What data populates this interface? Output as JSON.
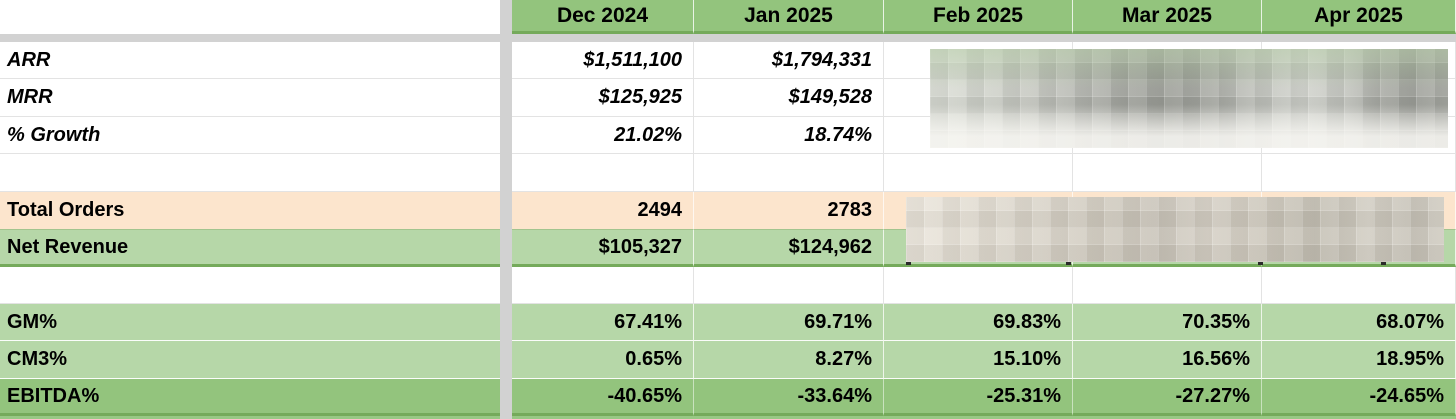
{
  "sheet": {
    "columns": [
      "Dec 2024",
      "Jan 2025",
      "Feb 2025",
      "Mar 2025",
      "Apr 2025"
    ],
    "rows": {
      "arr": {
        "label": "ARR",
        "dec": "$1,511,100",
        "jan": "$1,794,331"
      },
      "mrr": {
        "label": "MRR",
        "dec": "$125,925",
        "jan": "$149,528"
      },
      "growth": {
        "label": "% Growth",
        "dec": "21.02%",
        "jan": "18.74%"
      },
      "total_orders": {
        "label": "Total Orders",
        "dec": "2494",
        "jan": "2783"
      },
      "net_revenue": {
        "label": "Net Revenue",
        "dec": "$105,327",
        "jan": "$124,962"
      },
      "gm": {
        "label": "GM%",
        "values": [
          "67.41%",
          "69.71%",
          "69.83%",
          "70.35%",
          "68.07%"
        ]
      },
      "cm3": {
        "label": "CM3%",
        "values": [
          "0.65%",
          "8.27%",
          "15.10%",
          "16.56%",
          "18.95%"
        ]
      },
      "ebitda": {
        "label": "EBITDA%",
        "values": [
          "-40.65%",
          "-33.64%",
          "-25.31%",
          "-27.27%",
          "-24.65%"
        ]
      }
    },
    "redactions": [
      {
        "name": "arr-mrr-growth-feb-apr",
        "note": "pixelated blur over Feb–Apr values"
      },
      {
        "name": "orders-revenue-feb-apr",
        "note": "pixelated blur over Feb–Apr values"
      }
    ],
    "colors": {
      "header_green": "#93c47d",
      "light_green": "#b6d7a8",
      "dark_green_border": "#75aa5b",
      "peach": "#fce5cd",
      "frozen_divider_gray": "#d2d2d2",
      "gridline_gray": "#e3e3e3",
      "text": "#000000"
    }
  }
}
